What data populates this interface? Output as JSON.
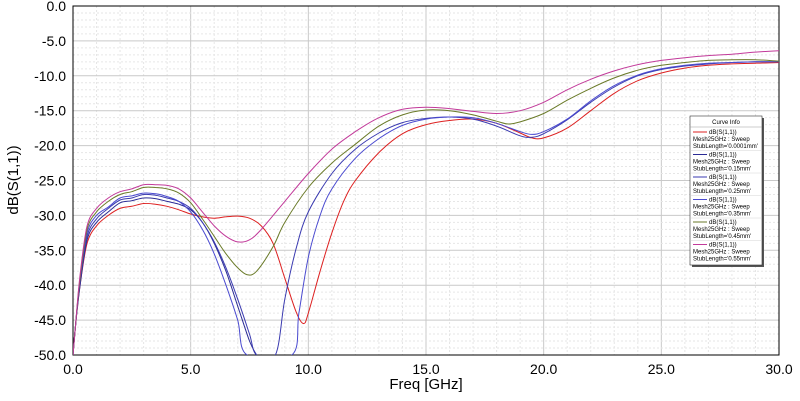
{
  "chart_data": {
    "type": "line",
    "xlabel": "Freq [GHz]",
    "ylabel": "dB(S(1,1))",
    "xlim": [
      0,
      30
    ],
    "ylim": [
      -50,
      0
    ],
    "x_ticks": [
      "0.0",
      "5.0",
      "10.0",
      "15.0",
      "20.0",
      "25.0",
      "30.0"
    ],
    "y_ticks": [
      "0.0",
      "-5.0",
      "-10.0",
      "-15.0",
      "-20.0",
      "-25.0",
      "-30.0",
      "-35.0",
      "-40.0",
      "-45.0",
      "-50.0"
    ],
    "grid": true,
    "legend_title": "Curve Info",
    "legend_position": "right",
    "series": [
      {
        "name": "dB(S(1,1))",
        "line2": "Mesh25GHz : Sweep",
        "line3": "StubLength='0.0001mm'",
        "color": "#dd2020",
        "points": [
          [
            0,
            -50
          ],
          [
            0.1,
            -46
          ],
          [
            0.3,
            -40
          ],
          [
            0.6,
            -34
          ],
          [
            1,
            -31.5
          ],
          [
            1.5,
            -30
          ],
          [
            2,
            -29
          ],
          [
            2.5,
            -28.7
          ],
          [
            3,
            -28.3
          ],
          [
            3.5,
            -28.4
          ],
          [
            4,
            -28.7
          ],
          [
            4.5,
            -29.2
          ],
          [
            5,
            -29.8
          ],
          [
            5.5,
            -30.2
          ],
          [
            6,
            -30.4
          ],
          [
            6.5,
            -30.2
          ],
          [
            7,
            -30.1
          ],
          [
            7.5,
            -30.4
          ],
          [
            8,
            -31.5
          ],
          [
            8.5,
            -34
          ],
          [
            9,
            -39
          ],
          [
            9.5,
            -44
          ],
          [
            9.8,
            -45.5
          ],
          [
            10,
            -44
          ],
          [
            10.5,
            -38
          ],
          [
            11,
            -32.5
          ],
          [
            11.5,
            -28
          ],
          [
            12,
            -25
          ],
          [
            13,
            -21
          ],
          [
            14,
            -18.3
          ],
          [
            15,
            -17
          ],
          [
            16,
            -16.4
          ],
          [
            17,
            -16.2
          ],
          [
            18,
            -16.8
          ],
          [
            19,
            -18.2
          ],
          [
            19.5,
            -18.9
          ],
          [
            20,
            -18.9
          ],
          [
            21,
            -17.5
          ],
          [
            22,
            -15
          ],
          [
            23,
            -12.5
          ],
          [
            24,
            -10.7
          ],
          [
            25,
            -9.6
          ],
          [
            26,
            -8.9
          ],
          [
            27,
            -8.5
          ],
          [
            28,
            -8.3
          ],
          [
            29,
            -8.2
          ],
          [
            30,
            -8.1
          ]
        ]
      },
      {
        "name": "dB(S(1,1))",
        "line2": "Mesh25GHz : Sweep",
        "line3": "StubLength='0.15mm'",
        "color": "#2b2b95",
        "points": [
          [
            0,
            -50
          ],
          [
            0.1,
            -46
          ],
          [
            0.3,
            -40
          ],
          [
            0.6,
            -33.5
          ],
          [
            1,
            -31
          ],
          [
            1.5,
            -29.5
          ],
          [
            2,
            -28.2
          ],
          [
            2.5,
            -27.9
          ],
          [
            3,
            -27.5
          ],
          [
            3.5,
            -27.6
          ],
          [
            4,
            -28
          ],
          [
            4.5,
            -28.4
          ],
          [
            5,
            -29.2
          ],
          [
            5.5,
            -31
          ],
          [
            6,
            -34
          ],
          [
            6.5,
            -38
          ],
          [
            7,
            -43
          ],
          [
            7.5,
            -48
          ],
          [
            7.8,
            -50
          ]
        ]
      },
      {
        "name": "dB(S(1,1))",
        "line2": "Mesh25GHz : Sweep",
        "line3": "StubLength='0.25mm'",
        "color": "#3a3ab0",
        "points": [
          [
            0,
            -50
          ],
          [
            0.1,
            -46
          ],
          [
            0.3,
            -39.5
          ],
          [
            0.6,
            -33
          ],
          [
            1,
            -30.5
          ],
          [
            1.5,
            -29
          ],
          [
            2,
            -27.8
          ],
          [
            2.5,
            -27.5
          ],
          [
            3,
            -27
          ],
          [
            3.5,
            -27.1
          ],
          [
            4,
            -27.5
          ],
          [
            4.5,
            -28
          ],
          [
            5,
            -29
          ],
          [
            5.5,
            -31
          ],
          [
            6,
            -33.8
          ],
          [
            6.5,
            -37.5
          ],
          [
            7,
            -42
          ],
          [
            7.5,
            -47
          ],
          [
            7.8,
            -50
          ],
          [
            8.6,
            -50
          ],
          [
            9,
            -42
          ],
          [
            9.5,
            -34.5
          ],
          [
            10,
            -29.5
          ],
          [
            11,
            -24
          ],
          [
            12,
            -20.5
          ],
          [
            13,
            -18.2
          ],
          [
            14,
            -16.7
          ],
          [
            15,
            -16.1
          ],
          [
            16,
            -15.9
          ],
          [
            17,
            -16.2
          ],
          [
            18,
            -17.2
          ],
          [
            19,
            -18.6
          ],
          [
            19.5,
            -18.8
          ],
          [
            20,
            -18.3
          ],
          [
            21,
            -16.3
          ],
          [
            22,
            -13.8
          ],
          [
            23,
            -11.6
          ],
          [
            24,
            -10
          ],
          [
            25,
            -9.1
          ],
          [
            26,
            -8.6
          ],
          [
            27,
            -8.3
          ],
          [
            28,
            -8.1
          ],
          [
            29,
            -8
          ],
          [
            30,
            -8
          ]
        ]
      },
      {
        "name": "dB(S(1,1))",
        "line2": "Mesh25GHz : Sweep",
        "line3": "StubLength='0.35mm'",
        "color": "#4a4ad0",
        "points": [
          [
            0,
            -50
          ],
          [
            0.1,
            -46
          ],
          [
            0.3,
            -39
          ],
          [
            0.6,
            -32.5
          ],
          [
            1,
            -30
          ],
          [
            1.5,
            -28.8
          ],
          [
            2,
            -27.5
          ],
          [
            2.5,
            -27.2
          ],
          [
            3,
            -26.8
          ],
          [
            3.5,
            -26.9
          ],
          [
            4,
            -27.3
          ],
          [
            4.5,
            -28
          ],
          [
            5,
            -29.5
          ],
          [
            5.5,
            -32
          ],
          [
            6,
            -35.5
          ],
          [
            6.5,
            -40
          ],
          [
            7,
            -45
          ],
          [
            7.4,
            -50
          ],
          [
            9.3,
            -50
          ],
          [
            9.6,
            -44
          ],
          [
            10,
            -36
          ],
          [
            10.5,
            -30
          ],
          [
            11,
            -26.2
          ],
          [
            12,
            -21.8
          ],
          [
            13,
            -19
          ],
          [
            14,
            -17.1
          ],
          [
            15,
            -16.2
          ],
          [
            16,
            -15.9
          ],
          [
            17,
            -16
          ],
          [
            18,
            -16.8
          ],
          [
            19,
            -18
          ],
          [
            19.5,
            -18.4
          ],
          [
            20,
            -18
          ],
          [
            21,
            -16.2
          ],
          [
            22,
            -13.6
          ],
          [
            23,
            -11.4
          ],
          [
            24,
            -9.9
          ],
          [
            25,
            -9
          ],
          [
            26,
            -8.5
          ],
          [
            27,
            -8.2
          ],
          [
            28,
            -8.1
          ],
          [
            29,
            -8
          ],
          [
            30,
            -8
          ]
        ]
      },
      {
        "name": "dB(S(1,1))",
        "line2": "Mesh25GHz : Sweep",
        "line3": "StubLength='0.45mm'",
        "color": "#6a7a28",
        "points": [
          [
            0,
            -50
          ],
          [
            0.1,
            -46
          ],
          [
            0.3,
            -39
          ],
          [
            0.6,
            -32
          ],
          [
            1,
            -29.5
          ],
          [
            1.5,
            -28
          ],
          [
            2,
            -27
          ],
          [
            2.5,
            -26.6
          ],
          [
            3,
            -26
          ],
          [
            3.5,
            -26
          ],
          [
            4,
            -26.2
          ],
          [
            4.5,
            -26.8
          ],
          [
            5,
            -28.2
          ],
          [
            5.5,
            -30.5
          ],
          [
            6,
            -33
          ],
          [
            6.5,
            -35.5
          ],
          [
            7,
            -37.5
          ],
          [
            7.4,
            -38.5
          ],
          [
            7.8,
            -38
          ],
          [
            8.5,
            -34.5
          ],
          [
            9,
            -31
          ],
          [
            10,
            -26
          ],
          [
            11,
            -22.5
          ],
          [
            12,
            -19.8
          ],
          [
            13,
            -17.2
          ],
          [
            14,
            -15.6
          ],
          [
            15,
            -14.9
          ],
          [
            16,
            -15
          ],
          [
            17,
            -15.6
          ],
          [
            18,
            -16.5
          ],
          [
            18.5,
            -16.9
          ],
          [
            19,
            -16.6
          ],
          [
            20,
            -15.4
          ],
          [
            21,
            -13.5
          ],
          [
            22,
            -11.8
          ],
          [
            23,
            -10.3
          ],
          [
            24,
            -9.2
          ],
          [
            25,
            -8.5
          ],
          [
            26,
            -8.1
          ],
          [
            27,
            -7.8
          ],
          [
            28,
            -7.7
          ],
          [
            29,
            -7.7
          ],
          [
            30,
            -7.9
          ]
        ]
      },
      {
        "name": "dB(S(1,1))",
        "line2": "Mesh25GHz : Sweep",
        "line3": "StubLength='0.55mm'",
        "color": "#c23a9a",
        "points": [
          [
            0,
            -50
          ],
          [
            0.1,
            -46
          ],
          [
            0.3,
            -38.5
          ],
          [
            0.6,
            -31.5
          ],
          [
            1,
            -29
          ],
          [
            1.5,
            -27.5
          ],
          [
            2,
            -26.6
          ],
          [
            2.5,
            -26.2
          ],
          [
            3,
            -25.6
          ],
          [
            3.5,
            -25.6
          ],
          [
            4,
            -25.7
          ],
          [
            4.5,
            -26.2
          ],
          [
            5,
            -27.5
          ],
          [
            5.5,
            -29.5
          ],
          [
            6,
            -31.5
          ],
          [
            6.5,
            -33
          ],
          [
            7,
            -33.8
          ],
          [
            7.5,
            -33.5
          ],
          [
            8,
            -32
          ],
          [
            9,
            -28
          ],
          [
            10,
            -24
          ],
          [
            11,
            -20.5
          ],
          [
            12,
            -18
          ],
          [
            13,
            -16
          ],
          [
            14,
            -14.8
          ],
          [
            15,
            -14.5
          ],
          [
            16,
            -14.7
          ],
          [
            17,
            -15.1
          ],
          [
            18,
            -15.4
          ],
          [
            19,
            -15
          ],
          [
            20,
            -13.8
          ],
          [
            21,
            -12
          ],
          [
            22,
            -10.5
          ],
          [
            23,
            -9.3
          ],
          [
            24,
            -8.4
          ],
          [
            25,
            -7.8
          ],
          [
            26,
            -7.4
          ],
          [
            27,
            -7.1
          ],
          [
            28,
            -6.9
          ],
          [
            29,
            -6.6
          ],
          [
            30,
            -6.4
          ]
        ]
      }
    ]
  }
}
